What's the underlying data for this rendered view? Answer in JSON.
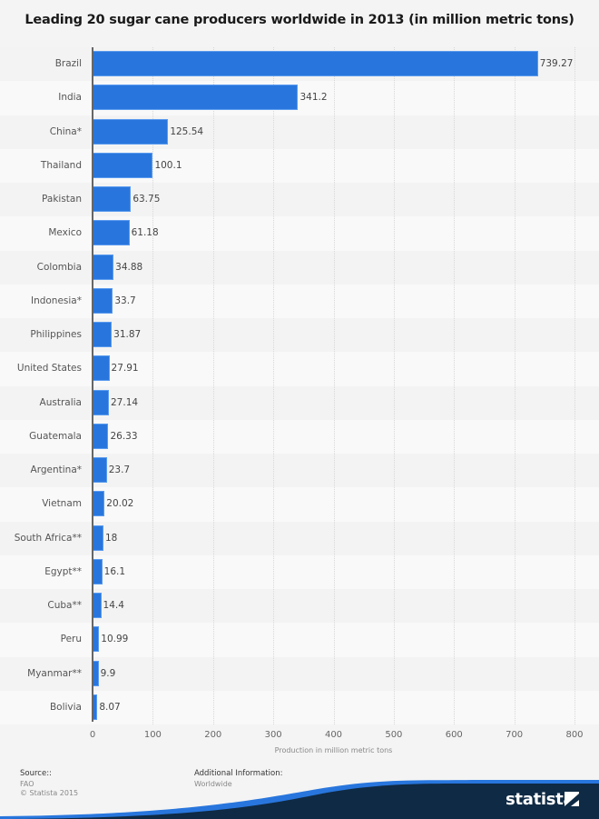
{
  "chart_data": {
    "type": "bar",
    "orientation": "horizontal",
    "title": "Leading 20 sugar cane producers worldwide in 2013 (in million metric tons)",
    "xlabel": "Production in million metric tons",
    "ylabel": "",
    "xlim": [
      0,
      800
    ],
    "xticks": [
      "0",
      "100",
      "200",
      "300",
      "400",
      "500",
      "600",
      "700",
      "800"
    ],
    "grid": true,
    "legend": null,
    "bar_color": "#2876dd",
    "categories": [
      "Brazil",
      "India",
      "China*",
      "Thailand",
      "Pakistan",
      "Mexico",
      "Colombia",
      "Indonesia*",
      "Philippines",
      "United States",
      "Australia",
      "Guatemala",
      "Argentina*",
      "Vietnam",
      "South Africa**",
      "Egypt**",
      "Cuba**",
      "Peru",
      "Myanmar**",
      "Bolivia"
    ],
    "values": [
      739.27,
      341.2,
      125.54,
      100.1,
      63.75,
      61.18,
      34.88,
      33.7,
      31.87,
      27.91,
      27.14,
      26.33,
      23.7,
      20.02,
      18,
      16.1,
      14.4,
      10.99,
      9.9,
      8.07
    ],
    "value_labels": [
      "739.27",
      "341.2",
      "125.54",
      "100.1",
      "63.75",
      "61.18",
      "34.88",
      "33.7",
      "31.87",
      "27.91",
      "27.14",
      "26.33",
      "23.7",
      "20.02",
      "18",
      "16.1",
      "14.4",
      "10.99",
      "9.9",
      "8.07"
    ]
  },
  "footer": {
    "source_heading": "Source::",
    "source_lines": [
      "FAO",
      "© Statista 2015"
    ],
    "additional_heading": "Additional Information:",
    "additional_lines": [
      "Worldwide"
    ],
    "brand": "statista"
  },
  "colors": {
    "bar": "#2876dd",
    "brand_dark": "#0f2a44",
    "brand_blue": "#2876dd"
  }
}
